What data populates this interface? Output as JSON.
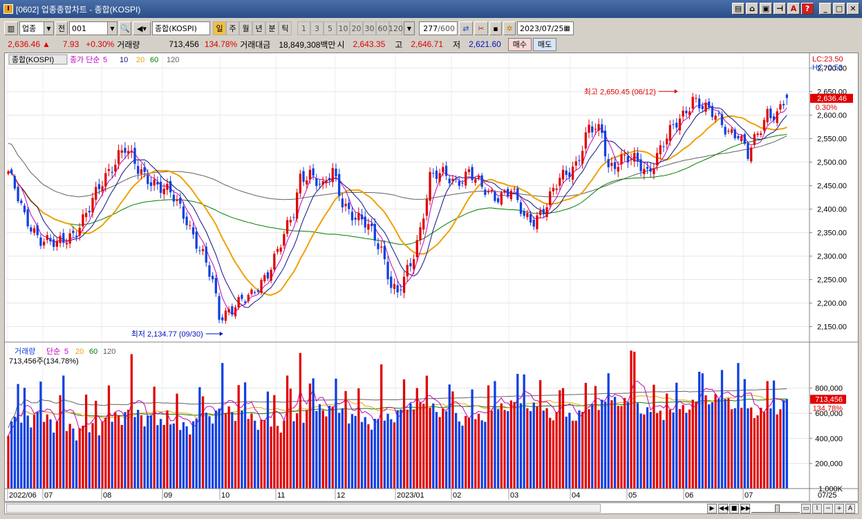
{
  "window": {
    "title": "[0602] 업종종합차트 - 종합(KOSPI)",
    "titlebar_icons": [
      "layout-icon",
      "home-icon",
      "print-icon",
      "pin-icon",
      "font-icon",
      "help-icon"
    ],
    "window_controls": [
      "minimize-icon",
      "maximize-icon",
      "close-icon"
    ]
  },
  "toolbar": {
    "market_select": "업종",
    "prev_label": "전",
    "code_value": "001",
    "index_name": "종합(KOSPI)",
    "periods": [
      "일",
      "주",
      "월",
      "년",
      "분",
      "틱"
    ],
    "active_period": "일",
    "minute_options": [
      "1",
      "3",
      "5",
      "10",
      "20",
      "30",
      "60",
      "120"
    ],
    "count_value": "277",
    "count_max": "/600",
    "date_value": "2023/07/25"
  },
  "pricebar": {
    "current": "2,636.46",
    "up_arrow": "▲",
    "change": "7.93",
    "change_pct": "+0.30%",
    "volume_label": "거래량",
    "volume": "713,456",
    "volume_pct": "134.78%",
    "amount_label": "거래대금",
    "amount": "18,849,308백만",
    "open_label": "시",
    "open": "2,643.35",
    "high_label": "고",
    "high": "2,646.71",
    "low_label": "저",
    "low": "2,621.60",
    "buy_label": "매수",
    "sell_label": "매도"
  },
  "price_panel": {
    "title": "종합(KOSPI)",
    "ma_label": "종가 단순",
    "ma_periods": [
      "5",
      "10",
      "20",
      "60",
      "120"
    ],
    "lc_label": "LC:23.50",
    "hc_label": "HC:-0.53",
    "high_annot": "최고 2,650.45 (06/12)",
    "low_annot": "최저 2,134.77 (09/30)",
    "last_price_tag": "2,636.46",
    "last_pct_tag": "0.30%",
    "y_ticks": [
      "2,700.00",
      "2,650.00",
      "2,600.00",
      "2,550.00",
      "2,500.00",
      "2,450.00",
      "2,400.00",
      "2,350.00",
      "2,300.00",
      "2,250.00",
      "2,200.00",
      "2,150.00"
    ]
  },
  "volume_panel": {
    "title": "거래량",
    "ma_label": "단순",
    "ma_periods": [
      "5",
      "20",
      "60",
      "120"
    ],
    "current_text": "713,456주(134.78%)",
    "last_tag": "713,456",
    "last_pct_tag": "134.78%",
    "y_ticks": [
      "1,000K",
      "800,000",
      "600,000",
      "400,000",
      "200,000"
    ]
  },
  "x_axis": {
    "labels": [
      "2022/06",
      "07",
      "08",
      "09",
      "10",
      "11",
      "12",
      "2023/01",
      "02",
      "03",
      "04",
      "05",
      "06",
      "07"
    ],
    "right_label": "07/25"
  },
  "colors": {
    "up": "#e00000",
    "down": "#1040e0",
    "ma5": "#c000c0",
    "ma10": "#101080",
    "ma20": "#f0a000",
    "ma60": "#008000",
    "ma120": "#606060"
  },
  "chart_data": {
    "type": "candlestick",
    "title": "종합(KOSPI)",
    "ylim": [
      2120,
      2720
    ],
    "volume_ylim": [
      0,
      1150000
    ],
    "anchors_close": [
      [
        0,
        2480
      ],
      [
        5,
        2380
      ],
      [
        10,
        2340
      ],
      [
        15,
        2320
      ],
      [
        20,
        2350
      ],
      [
        25,
        2400
      ],
      [
        30,
        2470
      ],
      [
        34,
        2520
      ],
      [
        36,
        2530
      ],
      [
        40,
        2480
      ],
      [
        45,
        2460
      ],
      [
        50,
        2430
      ],
      [
        55,
        2380
      ],
      [
        60,
        2300
      ],
      [
        63,
        2240
      ],
      [
        65,
        2170
      ],
      [
        70,
        2200
      ],
      [
        75,
        2210
      ],
      [
        80,
        2270
      ],
      [
        85,
        2340
      ],
      [
        88,
        2390
      ],
      [
        90,
        2470
      ],
      [
        93,
        2480
      ],
      [
        97,
        2440
      ],
      [
        100,
        2480
      ],
      [
        103,
        2420
      ],
      [
        107,
        2380
      ],
      [
        111,
        2360
      ],
      [
        115,
        2320
      ],
      [
        118,
        2240
      ],
      [
        120,
        2215
      ],
      [
        124,
        2280
      ],
      [
        127,
        2360
      ],
      [
        130,
        2470
      ],
      [
        134,
        2470
      ],
      [
        138,
        2460
      ],
      [
        142,
        2480
      ],
      [
        146,
        2440
      ],
      [
        150,
        2430
      ],
      [
        155,
        2440
      ],
      [
        159,
        2380
      ],
      [
        162,
        2380
      ],
      [
        166,
        2410
      ],
      [
        170,
        2460
      ],
      [
        175,
        2500
      ],
      [
        179,
        2570
      ],
      [
        183,
        2560
      ],
      [
        185,
        2490
      ],
      [
        189,
        2510
      ],
      [
        193,
        2500
      ],
      [
        197,
        2480
      ],
      [
        201,
        2530
      ],
      [
        205,
        2570
      ],
      [
        208,
        2600
      ],
      [
        211,
        2640
      ],
      [
        215,
        2610
      ],
      [
        219,
        2590
      ],
      [
        222,
        2570
      ],
      [
        225,
        2560
      ],
      [
        228,
        2510
      ],
      [
        231,
        2560
      ],
      [
        234,
        2610
      ],
      [
        237,
        2600
      ],
      [
        240,
        2636.46
      ]
    ],
    "high": {
      "value": 2650.45,
      "date": "06/12"
    },
    "low": {
      "value": 2134.77,
      "date": "09/30"
    },
    "last": {
      "close": 2636.46,
      "open": 2643.35,
      "high": 2646.71,
      "low": 2621.6,
      "volume": 713456
    }
  }
}
